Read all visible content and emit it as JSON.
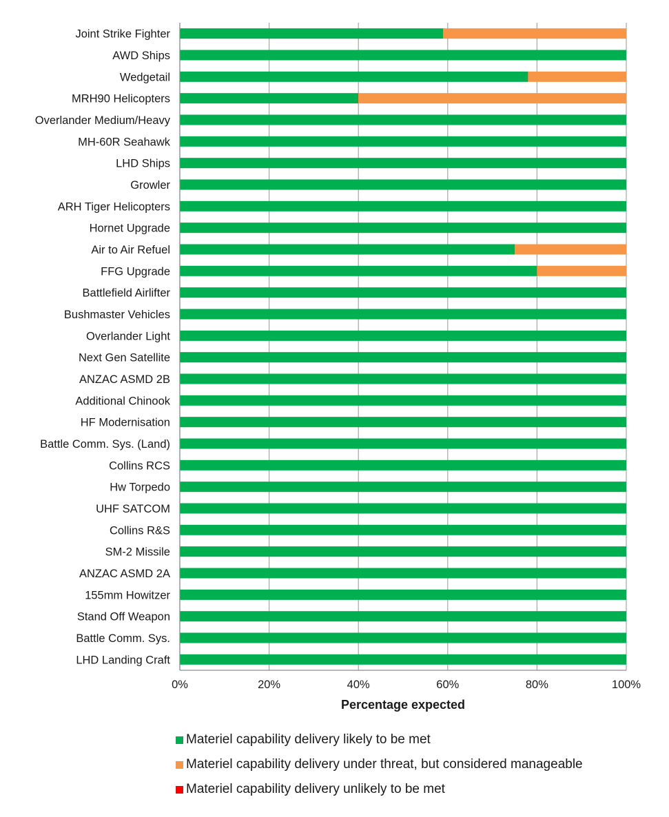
{
  "chart_data": {
    "type": "bar",
    "orientation": "horizontal",
    "stacked": true,
    "title": "",
    "xlabel": "Percentage expected",
    "ylabel": "",
    "xlim": [
      0,
      100
    ],
    "x_ticks": [
      "0%",
      "20%",
      "40%",
      "60%",
      "80%",
      "100%"
    ],
    "grid": true,
    "legend_position": "bottom",
    "categories": [
      "Joint Strike Fighter",
      "AWD Ships",
      "Wedgetail",
      "MRH90 Helicopters",
      "Overlander Medium/Heavy",
      "MH-60R Seahawk",
      "LHD Ships",
      "Growler",
      "ARH Tiger Helicopters",
      "Hornet Upgrade",
      "Air to Air Refuel",
      "FFG Upgrade",
      "Battlefield Airlifter",
      "Bushmaster Vehicles",
      "Overlander Light",
      "Next Gen Satellite",
      "ANZAC ASMD 2B",
      "Additional Chinook",
      "HF Modernisation",
      "Battle Comm. Sys. (Land)",
      "Collins RCS",
      "Hw Torpedo",
      "UHF SATCOM",
      "Collins R&S",
      "SM-2 Missile",
      "ANZAC ASMD 2A",
      "155mm Howitzer",
      "Stand Off  Weapon",
      "Battle Comm. Sys.",
      "LHD Landing Craft"
    ],
    "series": [
      {
        "name": "Materiel capability delivery likely to be met",
        "color": "#00b050",
        "values": [
          59,
          100,
          78,
          40,
          100,
          100,
          100,
          100,
          100,
          100,
          75,
          80,
          100,
          100,
          100,
          100,
          100,
          100,
          100,
          100,
          100,
          100,
          100,
          100,
          100,
          100,
          100,
          100,
          100,
          100
        ]
      },
      {
        "name": "Materiel capability delivery under threat, but considered manageable",
        "color": "#f79646",
        "values": [
          41,
          0,
          22,
          60,
          0,
          0,
          0,
          0,
          0,
          0,
          25,
          20,
          0,
          0,
          0,
          0,
          0,
          0,
          0,
          0,
          0,
          0,
          0,
          0,
          0,
          0,
          0,
          0,
          0,
          0
        ]
      },
      {
        "name": "Materiel capability delivery unlikely to be met",
        "color": "#ff0000",
        "values": [
          0,
          0,
          0,
          0,
          0,
          0,
          0,
          0,
          0,
          0,
          0,
          0,
          0,
          0,
          0,
          0,
          0,
          0,
          0,
          0,
          0,
          0,
          0,
          0,
          0,
          0,
          0,
          0,
          0,
          0
        ]
      }
    ]
  }
}
